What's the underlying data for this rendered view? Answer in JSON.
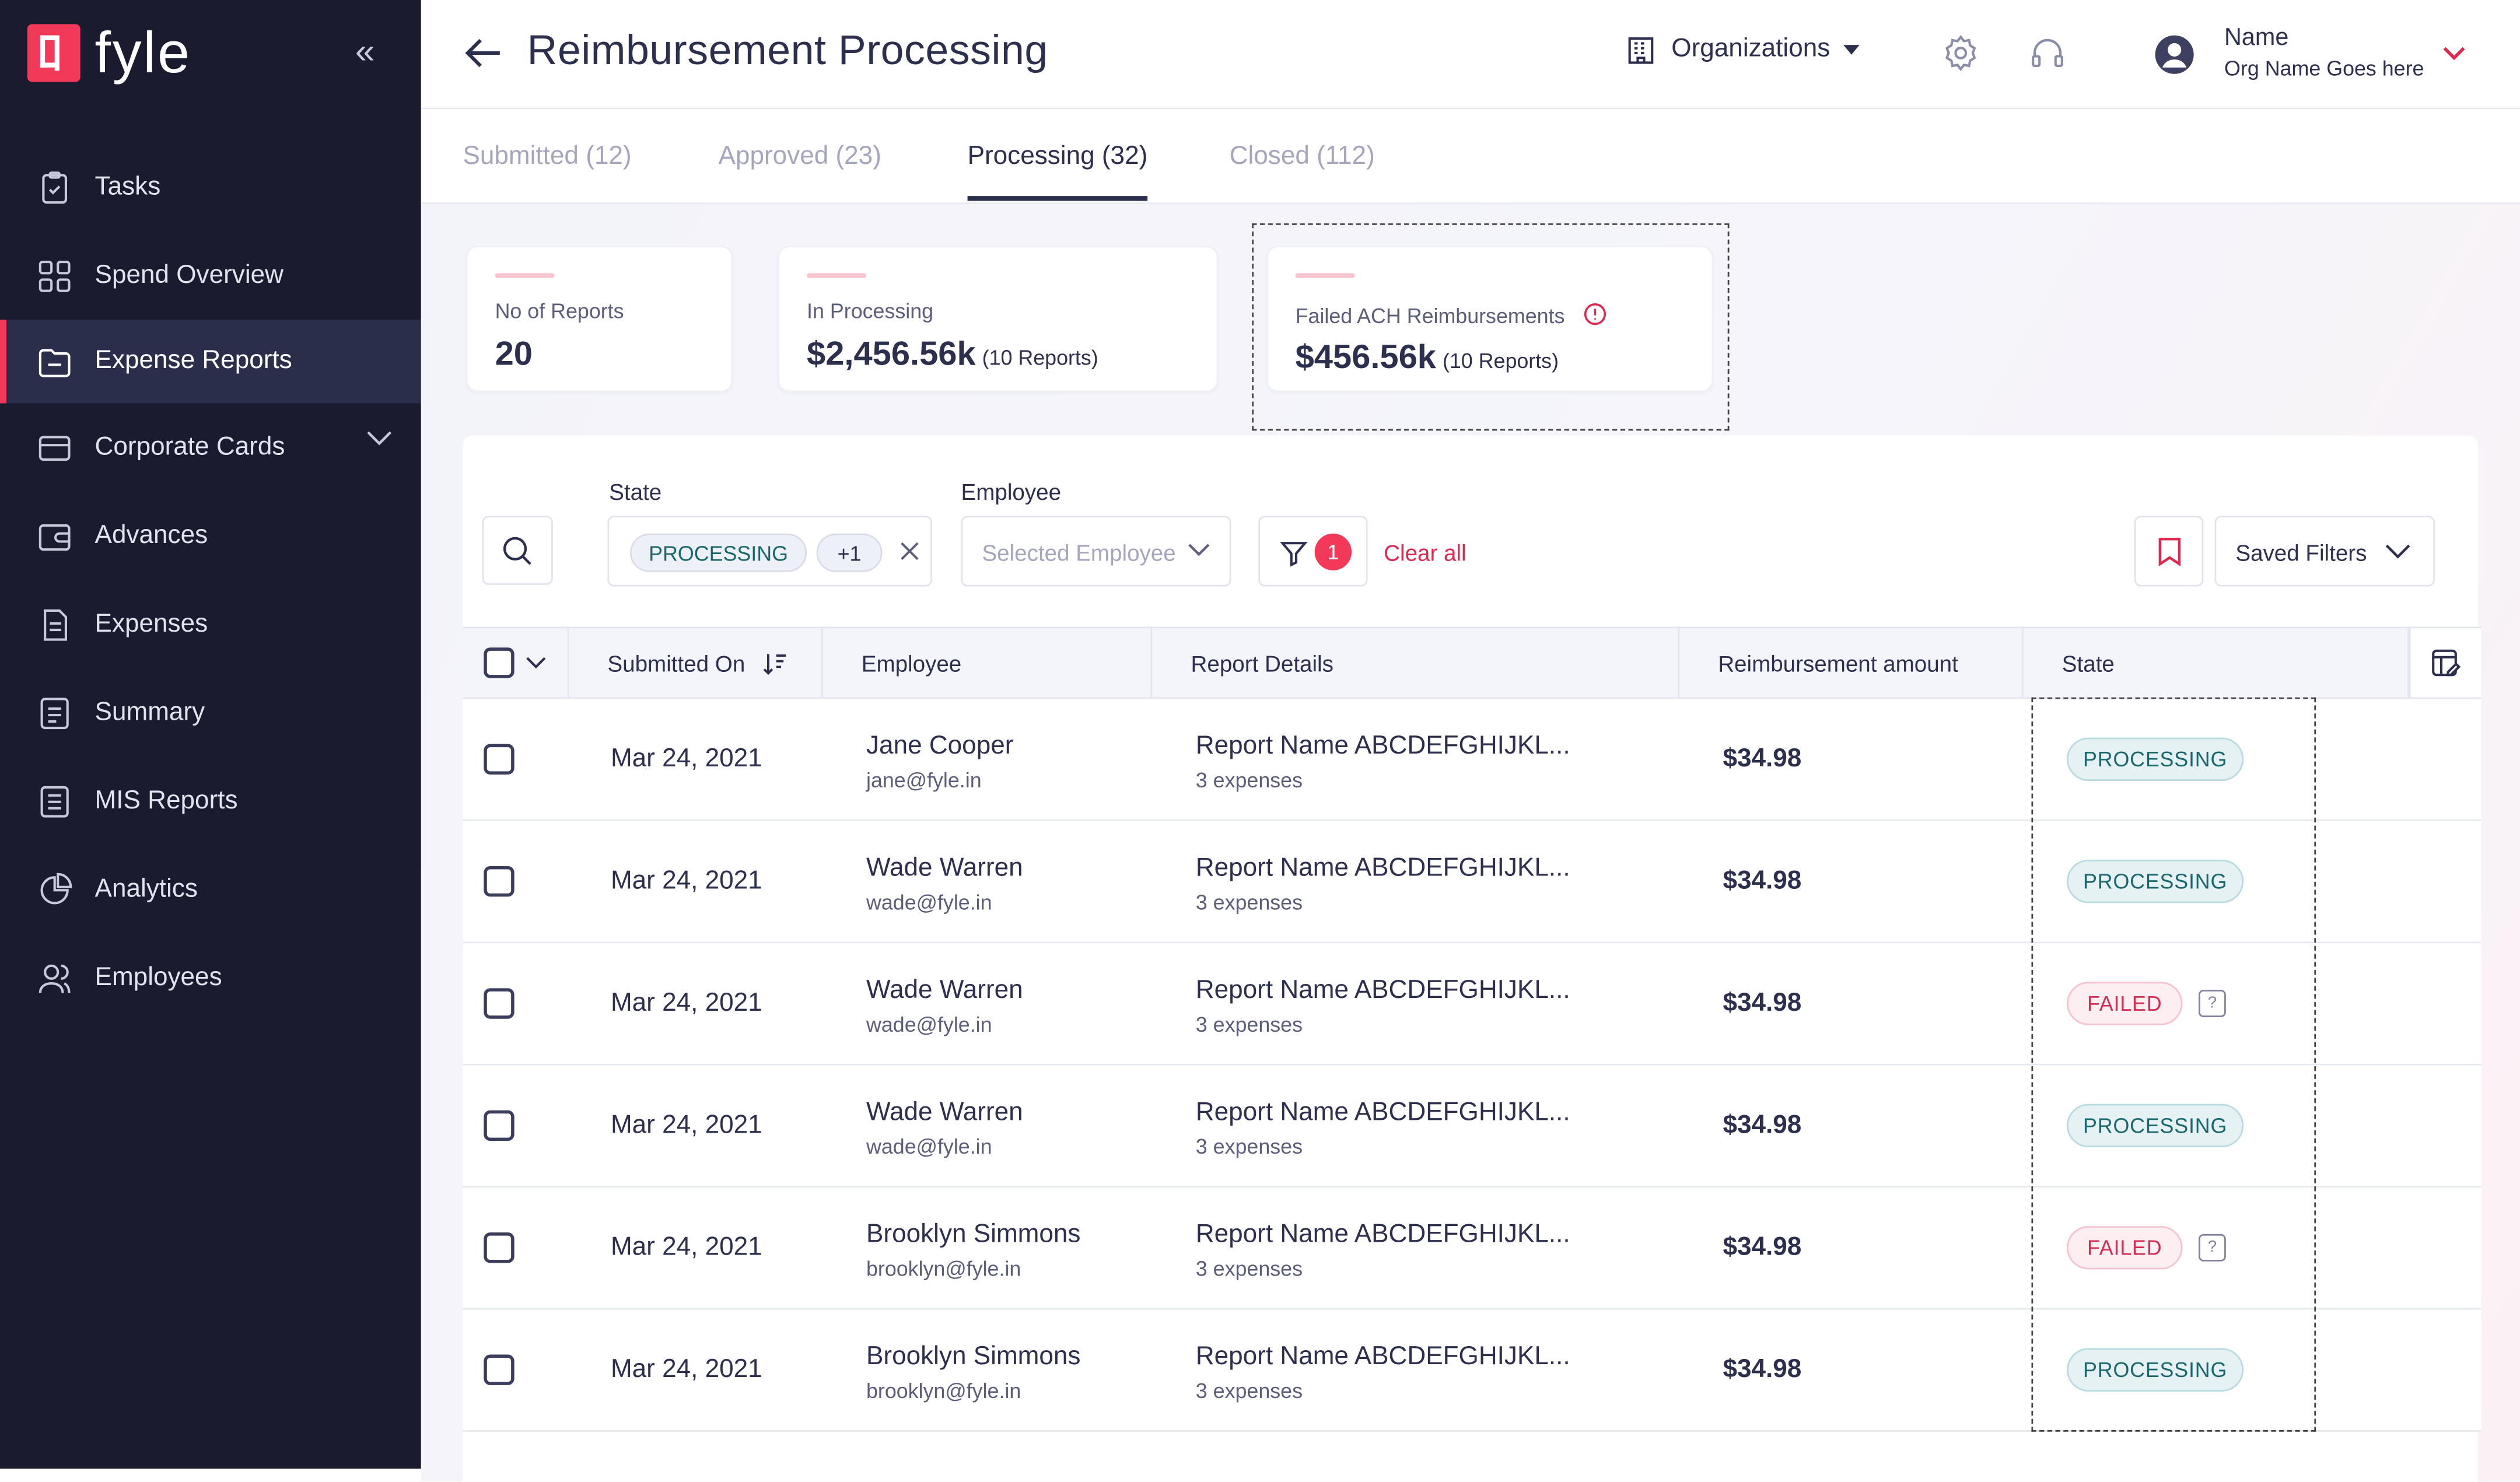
{
  "brand": {
    "name": "fyle",
    "mark": "fyle-logo"
  },
  "sidebar": {
    "items": [
      {
        "label": "Tasks",
        "icon": "clipboard-check-icon",
        "active": false
      },
      {
        "label": "Spend Overview",
        "icon": "grid-icon",
        "active": false
      },
      {
        "label": "Expense Reports",
        "icon": "folder-icon",
        "active": true
      },
      {
        "label": "Corporate Cards",
        "icon": "credit-card-icon",
        "active": false,
        "expandable": true
      },
      {
        "label": "Advances",
        "icon": "wallet-icon",
        "active": false
      },
      {
        "label": "Expenses",
        "icon": "receipt-icon",
        "active": false
      },
      {
        "label": "Summary",
        "icon": "list-doc-icon",
        "active": false
      },
      {
        "label": "MIS Reports",
        "icon": "report-doc-icon",
        "active": false
      },
      {
        "label": "Analytics",
        "icon": "pie-chart-icon",
        "active": false
      },
      {
        "label": "Employees",
        "icon": "users-icon",
        "active": false
      }
    ]
  },
  "header": {
    "title": "Reimbursement Processing",
    "org_selector": "Organizations",
    "user": {
      "name": "Name",
      "org": "Org Name Goes here"
    }
  },
  "tabs": [
    {
      "label": "Submitted (12)",
      "active": false
    },
    {
      "label": "Approved (23)",
      "active": false
    },
    {
      "label": "Processing (32)",
      "active": true
    },
    {
      "label": "Closed (112)",
      "active": false
    }
  ],
  "stats": {
    "reports": {
      "label": "No of Reports",
      "value": "20"
    },
    "processing": {
      "label": "In Processing",
      "value": "$2,456.56k",
      "sub": "(10 Reports)"
    },
    "failed": {
      "label": "Failed ACH Reimbursements",
      "value": "$456.56k",
      "sub": "(10 Reports)"
    }
  },
  "filters": {
    "state_label": "State",
    "state_chip": "PROCESSING",
    "state_more": "+1",
    "employee_label": "Employee",
    "employee_placeholder": "Selected Employee",
    "filter_count": "1",
    "clear_all": "Clear all",
    "saved_filters": "Saved Filters"
  },
  "table": {
    "columns": [
      "Submitted On",
      "Employee",
      "Report Details",
      "Reimbursement amount",
      "State"
    ],
    "rows": [
      {
        "date": "Mar 24, 2021",
        "name": "Jane Cooper",
        "email": "jane@fyle.in",
        "report": "Report Name ABCDEFGHIJKL...",
        "expenses": "3 expenses",
        "amount": "$34.98",
        "state": "PROCESSING"
      },
      {
        "date": "Mar 24, 2021",
        "name": "Wade Warren",
        "email": "wade@fyle.in",
        "report": "Report Name ABCDEFGHIJKL...",
        "expenses": "3 expenses",
        "amount": "$34.98",
        "state": "PROCESSING"
      },
      {
        "date": "Mar 24, 2021",
        "name": "Wade Warren",
        "email": "wade@fyle.in",
        "report": "Report Name ABCDEFGHIJKL...",
        "expenses": "3 expenses",
        "amount": "$34.98",
        "state": "FAILED",
        "help": "?"
      },
      {
        "date": "Mar 24, 2021",
        "name": "Wade Warren",
        "email": "wade@fyle.in",
        "report": "Report Name ABCDEFGHIJKL...",
        "expenses": "3 expenses",
        "amount": "$34.98",
        "state": "PROCESSING"
      },
      {
        "date": "Mar 24, 2021",
        "name": "Brooklyn Simmons",
        "email": "brooklyn@fyle.in",
        "report": "Report Name ABCDEFGHIJKL...",
        "expenses": "3 expenses",
        "amount": "$34.98",
        "state": "FAILED",
        "help": "?"
      },
      {
        "date": "Mar 24, 2021",
        "name": "Brooklyn Simmons",
        "email": "brooklyn@fyle.in",
        "report": "Report Name ABCDEFGHIJKL...",
        "expenses": "3 expenses",
        "amount": "$34.98",
        "state": "PROCESSING"
      }
    ]
  },
  "colors": {
    "sidebar_bg": "#1a1b2e",
    "accent": "#f2395a",
    "processing_text": "#19686d",
    "failed_text": "#d42c52"
  }
}
